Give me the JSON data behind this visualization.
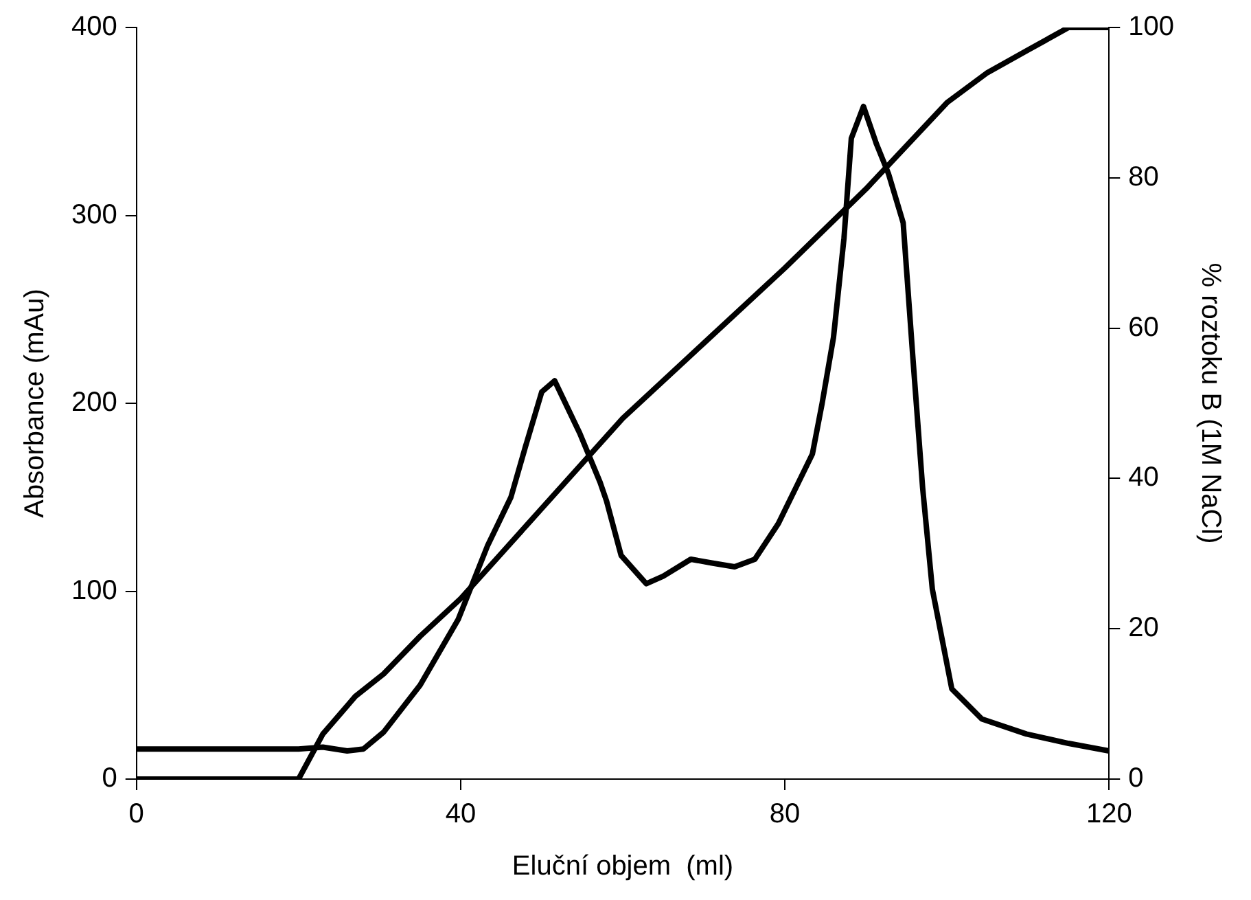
{
  "chart_data": {
    "type": "line",
    "xlabel": "Eluční objem  (ml)",
    "ylabel": "Absorbance (mAu)",
    "y2label": "% roztoku B (1M NaCl)",
    "xlim": [
      0,
      120
    ],
    "xticks": [
      0,
      40,
      80,
      120
    ],
    "ylim": [
      0,
      400
    ],
    "yticks": [
      0,
      100,
      200,
      300,
      400
    ],
    "y2lim": [
      0,
      100
    ],
    "y2ticks": [
      0,
      20,
      40,
      60,
      80,
      100
    ],
    "grid": false,
    "legend": false,
    "line_style": "solid",
    "series": [
      {
        "color": "#000000",
        "x": [
          0,
          10,
          20,
          23,
          26,
          28,
          30.5,
          35,
          39.7,
          43.3,
          46.2,
          48,
          50,
          51.6,
          54.7,
          57.2,
          58,
          59.8,
          62.9,
          65,
          68.4,
          71,
          73.8,
          76.3,
          79.2,
          83.4,
          84.6,
          86,
          87.3,
          88.2,
          89.7,
          91.3,
          92.8,
          94.6,
          95.8,
          97,
          98.2,
          100.6,
          104.3,
          109.8,
          115,
          120
        ],
        "values": [
          16,
          16,
          16,
          17,
          15,
          16,
          25,
          50,
          85,
          124,
          150,
          177,
          206,
          212,
          184,
          158,
          148,
          119,
          104,
          108,
          117,
          115,
          113,
          117,
          136,
          173,
          200,
          235,
          288,
          341,
          358,
          338,
          322,
          296,
          224,
          155,
          101,
          48,
          32,
          24,
          19,
          15
        ]
      },
      {
        "color": "#000000",
        "axis": "y2",
        "x": [
          0,
          20,
          23,
          27,
          30.5,
          35,
          40,
          45,
          50,
          60,
          70,
          80,
          90,
          100,
          105,
          110,
          115,
          120
        ],
        "values": [
          0,
          0,
          6,
          11,
          14,
          19,
          24,
          30,
          36,
          48,
          58,
          68,
          78.5,
          90,
          94,
          97,
          100,
          100
        ]
      }
    ]
  }
}
